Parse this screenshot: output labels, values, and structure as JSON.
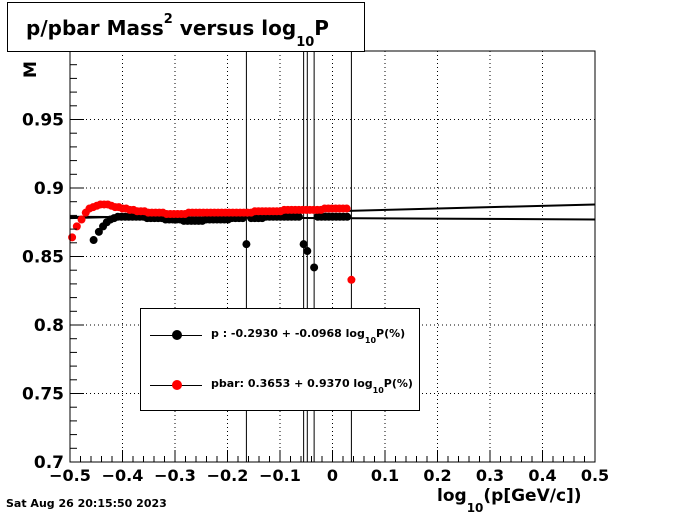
{
  "title": {
    "prefix": "p/pbar Mass",
    "sup": "2",
    "middle": " versus log",
    "sub": "10",
    "suffix": "P"
  },
  "ylabel_visible": "M",
  "xlabel": {
    "prefix": "log",
    "sub": "10",
    "suffix": "(p[GeV/c])"
  },
  "footer": "Sat Aug 26 20:15:50 2023",
  "legend": [
    {
      "color": "#000000",
      "label_pre": "p   : -0.2930 + -0.0968 log",
      "label_sub": "10",
      "label_post": "P(%)"
    },
    {
      "color": "#ff0000",
      "label_pre": "pbar: 0.3653 + 0.9370 log",
      "label_sub": "10",
      "label_post": "P(%)"
    }
  ],
  "colors": {
    "p": "#000000",
    "pbar": "#ff0000"
  },
  "chart_data": {
    "type": "scatter",
    "xlim": [
      -0.5,
      0.5
    ],
    "ylim": [
      0.7,
      1.0
    ],
    "x_ticks": [
      "−0.5",
      "−0.4",
      "−0.3",
      "−0.2",
      "−0.1",
      "0",
      "0.1",
      "0.2",
      "0.3",
      "0.4",
      "0.5"
    ],
    "x_tick_values": [
      -0.5,
      -0.4,
      -0.3,
      -0.2,
      -0.1,
      0,
      0.1,
      0.2,
      0.3,
      0.4,
      0.5
    ],
    "y_ticks": [
      "0.7",
      "0.75",
      "0.8",
      "0.85",
      "0.9",
      "0.95"
    ],
    "y_tick_values": [
      0.7,
      0.75,
      0.8,
      0.85,
      0.9,
      0.95
    ],
    "grid": true,
    "vertical_lines_x": [
      -0.164,
      -0.055,
      -0.048,
      -0.035,
      0.036
    ],
    "series": [
      {
        "name": "p",
        "color": "#000000",
        "points": [
          [
            -0.455,
            0.862
          ],
          [
            -0.445,
            0.868
          ],
          [
            -0.437,
            0.872
          ],
          [
            -0.43,
            0.875
          ],
          [
            -0.423,
            0.877
          ],
          [
            -0.416,
            0.878
          ],
          [
            -0.409,
            0.879
          ],
          [
            -0.402,
            0.879
          ],
          [
            -0.395,
            0.879
          ],
          [
            -0.388,
            0.879
          ],
          [
            -0.381,
            0.879
          ],
          [
            -0.374,
            0.879
          ],
          [
            -0.367,
            0.879
          ],
          [
            -0.36,
            0.879
          ],
          [
            -0.353,
            0.878
          ],
          [
            -0.346,
            0.878
          ],
          [
            -0.339,
            0.878
          ],
          [
            -0.332,
            0.878
          ],
          [
            -0.325,
            0.878
          ],
          [
            -0.318,
            0.877
          ],
          [
            -0.311,
            0.877
          ],
          [
            -0.304,
            0.877
          ],
          [
            -0.297,
            0.877
          ],
          [
            -0.29,
            0.877
          ],
          [
            -0.283,
            0.876
          ],
          [
            -0.276,
            0.876
          ],
          [
            -0.269,
            0.876
          ],
          [
            -0.262,
            0.876
          ],
          [
            -0.255,
            0.876
          ],
          [
            -0.248,
            0.876
          ],
          [
            -0.241,
            0.877
          ],
          [
            -0.234,
            0.877
          ],
          [
            -0.227,
            0.877
          ],
          [
            -0.22,
            0.877
          ],
          [
            -0.213,
            0.877
          ],
          [
            -0.206,
            0.877
          ],
          [
            -0.199,
            0.877
          ],
          [
            -0.192,
            0.878
          ],
          [
            -0.185,
            0.878
          ],
          [
            -0.178,
            0.878
          ],
          [
            -0.171,
            0.878
          ],
          [
            -0.164,
            0.859
          ],
          [
            -0.155,
            0.878
          ],
          [
            -0.148,
            0.878
          ],
          [
            -0.141,
            0.878
          ],
          [
            -0.134,
            0.878
          ],
          [
            -0.127,
            0.879
          ],
          [
            -0.12,
            0.879
          ],
          [
            -0.113,
            0.879
          ],
          [
            -0.106,
            0.879
          ],
          [
            -0.099,
            0.879
          ],
          [
            -0.092,
            0.879
          ],
          [
            -0.085,
            0.879
          ],
          [
            -0.078,
            0.879
          ],
          [
            -0.071,
            0.879
          ],
          [
            -0.064,
            0.879
          ],
          [
            -0.055,
            0.859
          ],
          [
            -0.048,
            0.854
          ],
          [
            -0.035,
            0.842
          ],
          [
            -0.028,
            0.879
          ],
          [
            -0.021,
            0.879
          ],
          [
            -0.014,
            0.879
          ],
          [
            -0.007,
            0.879
          ],
          [
            0.0,
            0.879
          ],
          [
            0.007,
            0.879
          ],
          [
            0.014,
            0.879
          ],
          [
            0.021,
            0.879
          ],
          [
            0.028,
            0.879
          ]
        ]
      },
      {
        "name": "pbar",
        "color": "#ff0000",
        "points": [
          [
            -0.496,
            0.864
          ],
          [
            -0.487,
            0.872
          ],
          [
            -0.478,
            0.877
          ],
          [
            -0.47,
            0.882
          ],
          [
            -0.463,
            0.885
          ],
          [
            -0.456,
            0.886
          ],
          [
            -0.449,
            0.887
          ],
          [
            -0.442,
            0.888
          ],
          [
            -0.435,
            0.888
          ],
          [
            -0.428,
            0.888
          ],
          [
            -0.421,
            0.887
          ],
          [
            -0.414,
            0.886
          ],
          [
            -0.407,
            0.886
          ],
          [
            -0.4,
            0.885
          ],
          [
            -0.393,
            0.885
          ],
          [
            -0.386,
            0.884
          ],
          [
            -0.379,
            0.884
          ],
          [
            -0.372,
            0.883
          ],
          [
            -0.365,
            0.883
          ],
          [
            -0.358,
            0.883
          ],
          [
            -0.351,
            0.882
          ],
          [
            -0.344,
            0.882
          ],
          [
            -0.337,
            0.882
          ],
          [
            -0.33,
            0.882
          ],
          [
            -0.323,
            0.882
          ],
          [
            -0.316,
            0.881
          ],
          [
            -0.309,
            0.881
          ],
          [
            -0.302,
            0.881
          ],
          [
            -0.295,
            0.881
          ],
          [
            -0.288,
            0.881
          ],
          [
            -0.281,
            0.881
          ],
          [
            -0.274,
            0.882
          ],
          [
            -0.267,
            0.882
          ],
          [
            -0.26,
            0.882
          ],
          [
            -0.253,
            0.882
          ],
          [
            -0.246,
            0.882
          ],
          [
            -0.239,
            0.882
          ],
          [
            -0.232,
            0.882
          ],
          [
            -0.225,
            0.882
          ],
          [
            -0.218,
            0.882
          ],
          [
            -0.211,
            0.882
          ],
          [
            -0.204,
            0.882
          ],
          [
            -0.197,
            0.882
          ],
          [
            -0.19,
            0.882
          ],
          [
            -0.183,
            0.882
          ],
          [
            -0.176,
            0.882
          ],
          [
            -0.169,
            0.882
          ],
          [
            -0.162,
            0.882
          ],
          [
            -0.155,
            0.882
          ],
          [
            -0.148,
            0.883
          ],
          [
            -0.141,
            0.883
          ],
          [
            -0.134,
            0.883
          ],
          [
            -0.127,
            0.883
          ],
          [
            -0.12,
            0.883
          ],
          [
            -0.113,
            0.883
          ],
          [
            -0.106,
            0.883
          ],
          [
            -0.099,
            0.883
          ],
          [
            -0.092,
            0.884
          ],
          [
            -0.085,
            0.884
          ],
          [
            -0.078,
            0.884
          ],
          [
            -0.071,
            0.884
          ],
          [
            -0.064,
            0.884
          ],
          [
            -0.057,
            0.884
          ],
          [
            -0.05,
            0.884
          ],
          [
            -0.043,
            0.884
          ],
          [
            -0.036,
            0.884
          ],
          [
            -0.029,
            0.884
          ],
          [
            -0.022,
            0.884
          ],
          [
            -0.015,
            0.885
          ],
          [
            -0.008,
            0.885
          ],
          [
            -0.001,
            0.885
          ],
          [
            0.006,
            0.885
          ],
          [
            0.013,
            0.885
          ],
          [
            0.02,
            0.885
          ],
          [
            0.027,
            0.885
          ],
          [
            0.036,
            0.833
          ]
        ]
      }
    ],
    "fit_lines": [
      {
        "name": "p fit",
        "color": "#000000",
        "points": [
          [
            -0.5,
            0.879
          ],
          [
            0.5,
            0.877
          ]
        ]
      },
      {
        "name": "pbar fit",
        "color": "#000000",
        "points": [
          [
            -0.5,
            0.878
          ],
          [
            0.5,
            0.888
          ]
        ]
      }
    ]
  }
}
